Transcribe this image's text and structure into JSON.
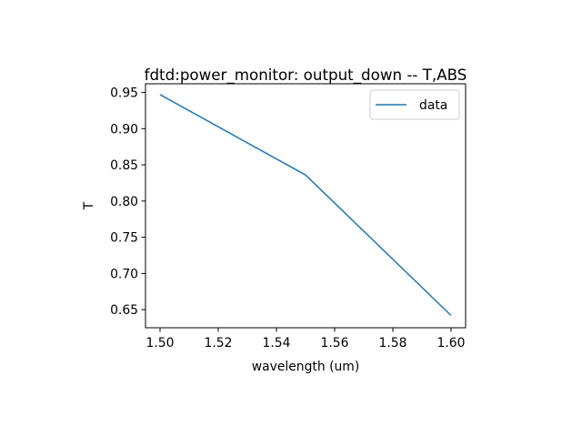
{
  "chart_data": {
    "type": "line",
    "title": "fdtd:power_monitor: output_down -- T,ABS",
    "xlabel": "wavelength (um)",
    "ylabel": "T",
    "xlim": [
      1.495,
      1.605
    ],
    "ylim": [
      0.625,
      0.962
    ],
    "xticks": [
      1.5,
      1.52,
      1.54,
      1.56,
      1.58,
      1.6
    ],
    "xtick_labels": [
      "1.50",
      "1.52",
      "1.54",
      "1.56",
      "1.58",
      "1.60"
    ],
    "yticks": [
      0.65,
      0.7,
      0.75,
      0.8,
      0.85,
      0.9,
      0.95
    ],
    "ytick_labels": [
      "0.65",
      "0.70",
      "0.75",
      "0.80",
      "0.85",
      "0.90",
      "0.95"
    ],
    "grid": false,
    "legend_position": "top-right",
    "series": [
      {
        "name": "data",
        "color": "#1f77b4",
        "x": [
          1.5,
          1.55,
          1.6
        ],
        "y": [
          0.947,
          0.836,
          0.642
        ]
      }
    ]
  }
}
